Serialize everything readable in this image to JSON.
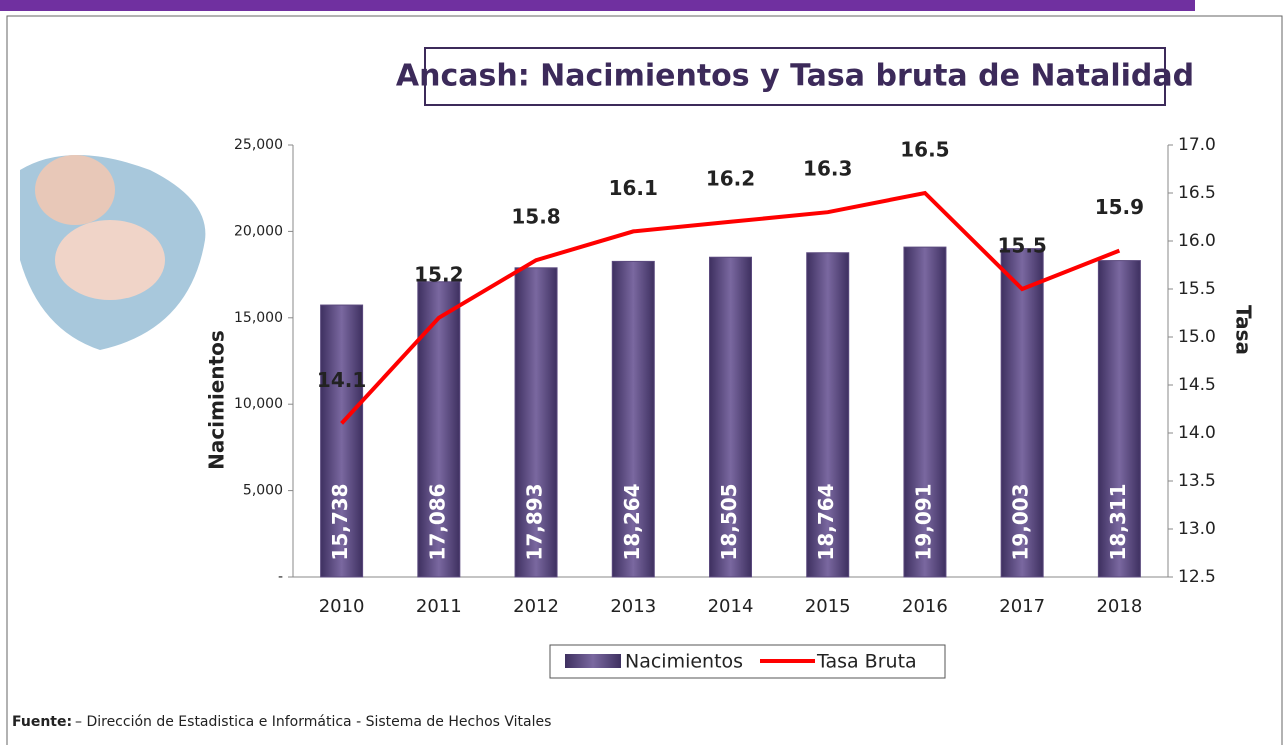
{
  "chart_data": {
    "type": "bar",
    "title": "Ancash: Nacimientos y Tasa bruta de Natalidad",
    "categories": [
      "2010",
      "2011",
      "2012",
      "2013",
      "2014",
      "2015",
      "2016",
      "2017",
      "2018"
    ],
    "series": [
      {
        "name": "Nacimientos",
        "type": "bar",
        "color": "#5b4a7e",
        "values": [
          15738,
          17086,
          17893,
          18264,
          18505,
          18764,
          19091,
          19003,
          18311
        ],
        "value_labels": [
          "15,738",
          "17,086",
          "17,893",
          "18,264",
          "18,505",
          "18,764",
          "19,091",
          "19,003",
          "18,311"
        ]
      },
      {
        "name": "Tasa Bruta",
        "type": "line",
        "axis": "y2",
        "color": "#ff0000",
        "values": [
          14.1,
          15.2,
          15.8,
          16.1,
          16.2,
          16.3,
          16.5,
          15.5,
          15.9
        ]
      }
    ],
    "ylabel": "Nacimientos",
    "y2label": "Tasa",
    "ylim": [
      0,
      25000
    ],
    "yticks": [
      {
        "value": 0,
        "label": "-"
      },
      {
        "value": 5000,
        "label": "5,000"
      },
      {
        "value": 10000,
        "label": "10,000"
      },
      {
        "value": 15000,
        "label": "15,000"
      },
      {
        "value": 20000,
        "label": "20,000"
      },
      {
        "value": 25000,
        "label": "25,000"
      }
    ],
    "y2lim": [
      12.5,
      17.0
    ],
    "y2ticks": [
      12.5,
      {
        "value": 13,
        "label": "13.0"
      },
      13.5,
      {
        "value": 14,
        "label": "14.0"
      },
      14.5,
      {
        "value": 15,
        "label": "15.0"
      },
      15.5,
      {
        "value": 16,
        "label": "16.0"
      },
      16.5,
      {
        "value": 17,
        "label": "17.0"
      }
    ],
    "legend": "bottom",
    "grid": false
  },
  "footer": {
    "label": "Fuente:",
    "text": "– Dirección de Estadistica e Informática - Sistema de Hechos Vitales"
  }
}
